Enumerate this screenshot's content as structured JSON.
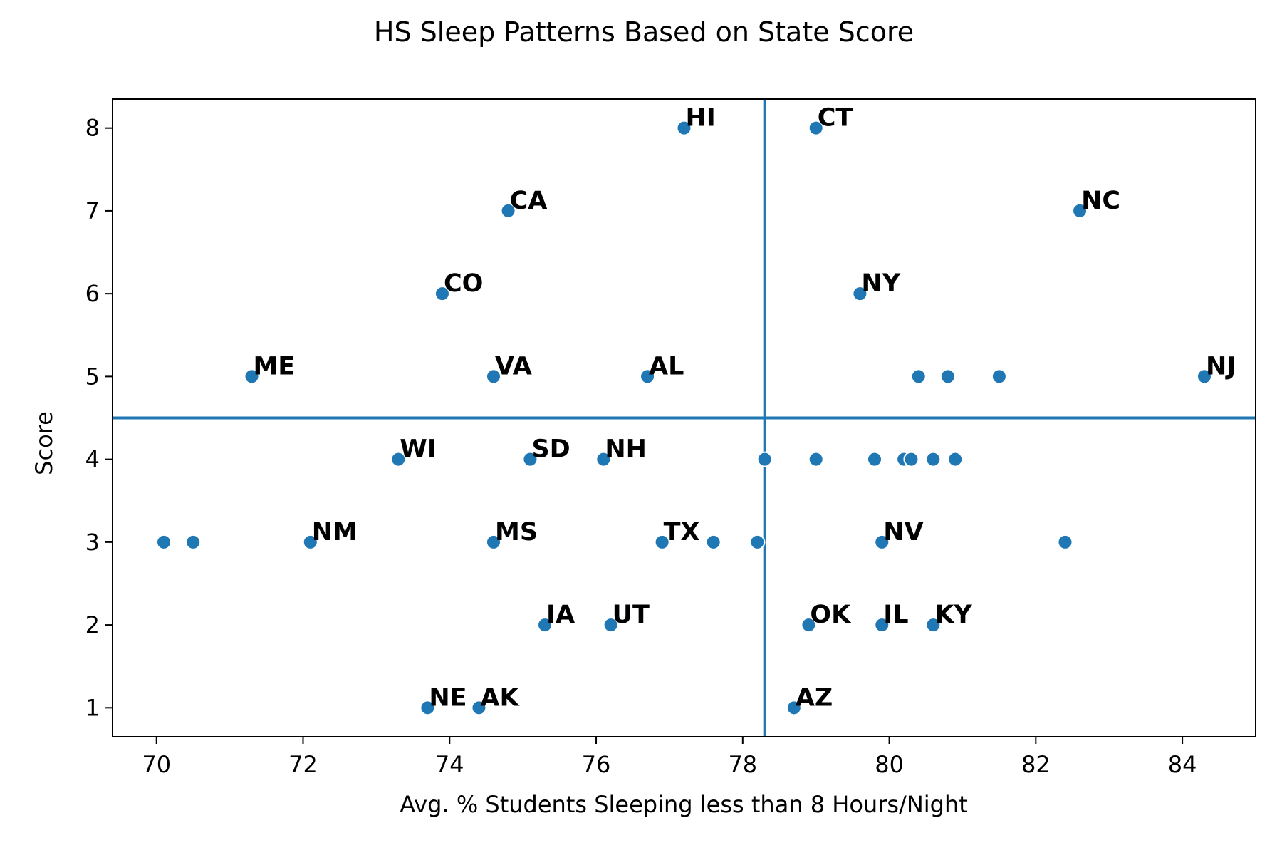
{
  "chart_data": {
    "type": "scatter",
    "title": "HS Sleep Patterns Based on State Score",
    "xlabel": "Avg. % Students Sleeping less than 8 Hours/Night",
    "ylabel": "Score",
    "xlim": [
      69.4,
      85.0
    ],
    "ylim": [
      0.65,
      8.35
    ],
    "xticks": [
      70,
      72,
      74,
      76,
      78,
      80,
      82,
      84
    ],
    "yticks": [
      1,
      2,
      3,
      4,
      5,
      6,
      7,
      8
    ],
    "grid": false,
    "reference_lines": {
      "vertical_x": 78.3,
      "horizontal_y": 4.5
    },
    "color": "#1f77b4",
    "points": [
      {
        "x": 77.2,
        "y": 8,
        "label": "HI"
      },
      {
        "x": 79.0,
        "y": 8,
        "label": "CT"
      },
      {
        "x": 74.8,
        "y": 7,
        "label": "CA"
      },
      {
        "x": 82.6,
        "y": 7,
        "label": "NC"
      },
      {
        "x": 73.9,
        "y": 6,
        "label": "CO"
      },
      {
        "x": 79.6,
        "y": 6,
        "label": "NY"
      },
      {
        "x": 71.3,
        "y": 5,
        "label": "ME"
      },
      {
        "x": 74.6,
        "y": 5,
        "label": "VA"
      },
      {
        "x": 76.7,
        "y": 5,
        "label": "AL"
      },
      {
        "x": 80.4,
        "y": 5,
        "label": ""
      },
      {
        "x": 80.8,
        "y": 5,
        "label": ""
      },
      {
        "x": 81.5,
        "y": 5,
        "label": ""
      },
      {
        "x": 84.3,
        "y": 5,
        "label": "NJ"
      },
      {
        "x": 73.3,
        "y": 4,
        "label": "WI"
      },
      {
        "x": 75.1,
        "y": 4,
        "label": "SD"
      },
      {
        "x": 76.1,
        "y": 4,
        "label": "NH"
      },
      {
        "x": 78.3,
        "y": 4,
        "label": ""
      },
      {
        "x": 79.0,
        "y": 4,
        "label": ""
      },
      {
        "x": 79.8,
        "y": 4,
        "label": ""
      },
      {
        "x": 80.2,
        "y": 4,
        "label": ""
      },
      {
        "x": 80.3,
        "y": 4,
        "label": ""
      },
      {
        "x": 80.6,
        "y": 4,
        "label": ""
      },
      {
        "x": 80.9,
        "y": 4,
        "label": ""
      },
      {
        "x": 70.1,
        "y": 3,
        "label": ""
      },
      {
        "x": 70.5,
        "y": 3,
        "label": ""
      },
      {
        "x": 72.1,
        "y": 3,
        "label": "NM"
      },
      {
        "x": 74.6,
        "y": 3,
        "label": "MS"
      },
      {
        "x": 76.9,
        "y": 3,
        "label": "TX"
      },
      {
        "x": 77.6,
        "y": 3,
        "label": ""
      },
      {
        "x": 78.2,
        "y": 3,
        "label": ""
      },
      {
        "x": 79.9,
        "y": 3,
        "label": "NV"
      },
      {
        "x": 82.4,
        "y": 3,
        "label": ""
      },
      {
        "x": 75.3,
        "y": 2,
        "label": "IA"
      },
      {
        "x": 76.2,
        "y": 2,
        "label": "UT"
      },
      {
        "x": 78.9,
        "y": 2,
        "label": "OK"
      },
      {
        "x": 79.9,
        "y": 2,
        "label": "IL"
      },
      {
        "x": 80.6,
        "y": 2,
        "label": "KY"
      },
      {
        "x": 73.7,
        "y": 1,
        "label": "NE"
      },
      {
        "x": 74.4,
        "y": 1,
        "label": "AK"
      },
      {
        "x": 78.7,
        "y": 1,
        "label": "AZ"
      }
    ]
  }
}
